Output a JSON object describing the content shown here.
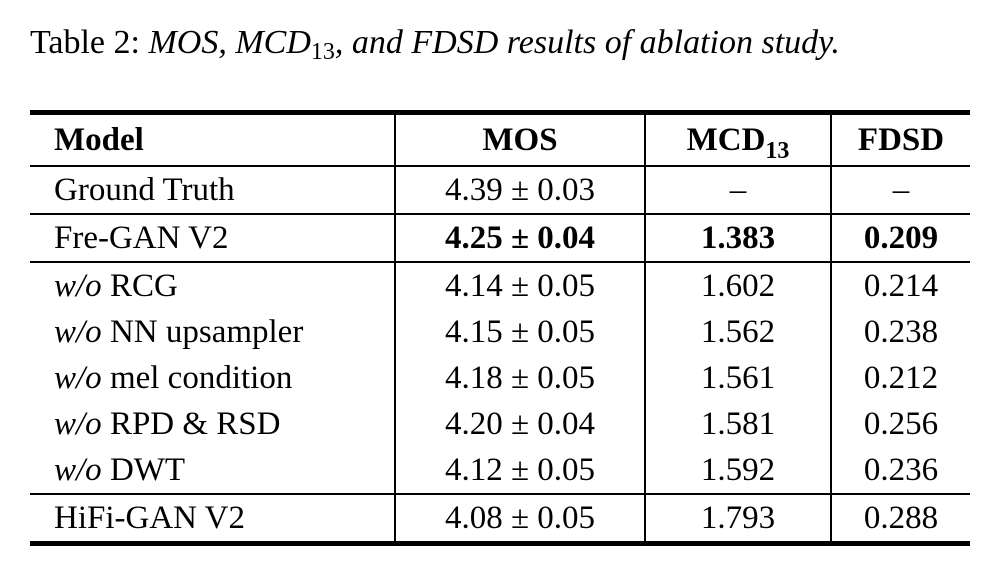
{
  "caption": {
    "label": "Table 2:",
    "text_a": "MOS, MCD",
    "text_sub": "13",
    "text_b": ", and FDSD results of ablation study."
  },
  "table": {
    "headers": {
      "model": "Model",
      "mos": "MOS",
      "mcd": "MCD",
      "mcd_sub": "13",
      "fdsd": "FDSD"
    },
    "rows": [
      {
        "prefix": "",
        "model": "Ground Truth",
        "mos": "4.39 ± 0.03",
        "mcd": "–",
        "fdsd": "–",
        "bold": false,
        "sep": false
      },
      {
        "prefix": "",
        "model": "Fre-GAN V2",
        "mos": "4.25 ± 0.04",
        "mcd": "1.383",
        "fdsd": "0.209",
        "bold": true,
        "sep": true
      },
      {
        "prefix": "w/o",
        "model": " RCG",
        "mos": "4.14 ± 0.05",
        "mcd": "1.602",
        "fdsd": "0.214",
        "bold": false,
        "sep": true
      },
      {
        "prefix": "w/o",
        "model": " NN upsampler",
        "mos": "4.15 ± 0.05",
        "mcd": "1.562",
        "fdsd": "0.238",
        "bold": false,
        "sep": false
      },
      {
        "prefix": "w/o",
        "model": " mel condition",
        "mos": "4.18 ± 0.05",
        "mcd": "1.561",
        "fdsd": "0.212",
        "bold": false,
        "sep": false
      },
      {
        "prefix": "w/o",
        "model": " RPD & RSD",
        "mos": "4.20 ± 0.04",
        "mcd": "1.581",
        "fdsd": "0.256",
        "bold": false,
        "sep": false
      },
      {
        "prefix": "w/o",
        "model": " DWT",
        "mos": "4.12 ± 0.05",
        "mcd": "1.592",
        "fdsd": "0.236",
        "bold": false,
        "sep": false
      },
      {
        "prefix": "",
        "model": "HiFi-GAN V2",
        "mos": "4.08 ± 0.05",
        "mcd": "1.793",
        "fdsd": "0.288",
        "bold": false,
        "sep": true
      }
    ]
  }
}
